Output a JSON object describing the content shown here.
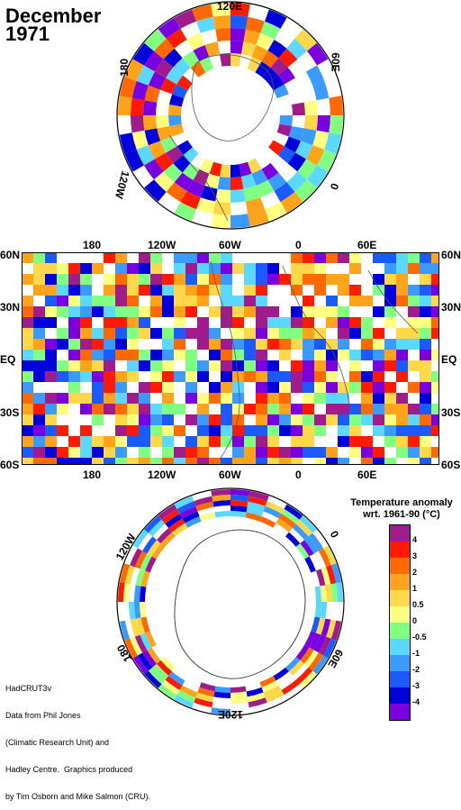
{
  "title": {
    "month": "December",
    "year": "1971"
  },
  "north_polar": {
    "labels": {
      "top": "120E",
      "right": "60E",
      "left": "180",
      "right_low": "0",
      "left_low": "120W"
    }
  },
  "global_map": {
    "top_lon_labels": [
      "180",
      "120W",
      "60W",
      "0",
      "60E"
    ],
    "bottom_lon_labels": [
      "180",
      "120W",
      "60W",
      "0",
      "60E"
    ],
    "lat_labels": [
      "60N",
      "30N",
      "EQ",
      "30S",
      "60S"
    ]
  },
  "south_polar": {
    "labels": {
      "left": "120W",
      "right": "0",
      "bottom": "120E",
      "left_low": "180",
      "right_low": "60E"
    }
  },
  "legend": {
    "title_line1": "Temperature anomaly",
    "title_line2": "wrt. 1961-90  (°C)",
    "labels": [
      "4",
      "3",
      "2",
      "1",
      "0.5",
      "0",
      "-0.5",
      "-1",
      "-2",
      "-3",
      "-4"
    ],
    "colors": [
      "#a01c8c",
      "#ff1a00",
      "#ff6a00",
      "#ffa31a",
      "#ffd84a",
      "#ffff80",
      "#80ff80",
      "#5ad8ff",
      "#3a9aff",
      "#1a5aff",
      "#0000dd",
      "#7a00e0"
    ]
  },
  "credits": {
    "line1": "HadCRUT3v",
    "line2": "Data from Phil Jones",
    "line3": "(Climatic Research Unit) and",
    "line4": "Hadley Centre.  Graphics produced",
    "line5": "by Tim Osborn and Mike Salmon (CRU)."
  }
}
